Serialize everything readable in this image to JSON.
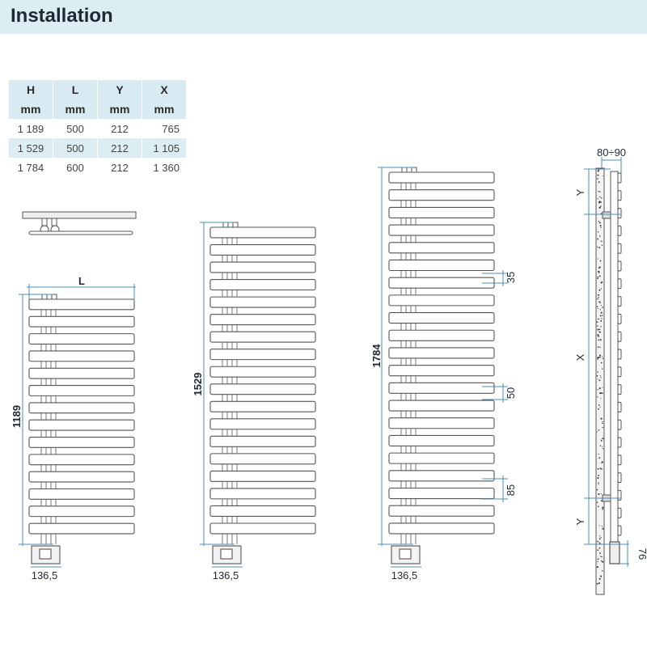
{
  "header": {
    "title": "Installation"
  },
  "table": {
    "headers": [
      [
        "H",
        "mm"
      ],
      [
        "L",
        "mm"
      ],
      [
        "Y",
        "mm"
      ],
      [
        "X",
        "mm"
      ]
    ],
    "rows": [
      [
        "1 189",
        "500",
        "212",
        "765"
      ],
      [
        "1 529",
        "500",
        "212",
        "1 105"
      ],
      [
        "1 784",
        "600",
        "212",
        "1 360"
      ]
    ]
  },
  "drawings": {
    "width_label": "L",
    "heights": [
      "1189",
      "1529",
      "1784"
    ],
    "valve_offset": "136,5",
    "spacings": [
      "35",
      "50",
      "85"
    ],
    "side": {
      "depth": "80÷90",
      "y_top": "Y",
      "x_mid": "X",
      "y_bottom": "Y",
      "bottom_offset": "76"
    }
  },
  "colors": {
    "header_bg": "#dcedf4",
    "dimension_line": "#4d8fb3",
    "outline": "#555555"
  }
}
